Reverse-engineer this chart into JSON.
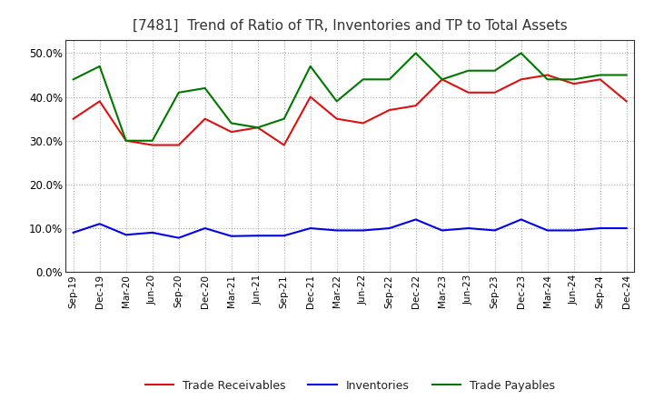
{
  "title": "[7481]  Trend of Ratio of TR, Inventories and TP to Total Assets",
  "x_labels": [
    "Sep-19",
    "Dec-19",
    "Mar-20",
    "Jun-20",
    "Sep-20",
    "Dec-20",
    "Mar-21",
    "Jun-21",
    "Sep-21",
    "Dec-21",
    "Mar-22",
    "Jun-22",
    "Sep-22",
    "Dec-22",
    "Mar-23",
    "Jun-23",
    "Sep-23",
    "Dec-23",
    "Mar-24",
    "Jun-24",
    "Sep-24",
    "Dec-24"
  ],
  "trade_receivables": [
    0.35,
    0.39,
    0.3,
    0.29,
    0.29,
    0.35,
    0.32,
    0.33,
    0.29,
    0.4,
    0.35,
    0.34,
    0.37,
    0.38,
    0.44,
    0.41,
    0.41,
    0.44,
    0.45,
    0.43,
    0.44,
    0.39
  ],
  "inventories": [
    0.09,
    0.11,
    0.085,
    0.09,
    0.078,
    0.1,
    0.082,
    0.083,
    0.083,
    0.1,
    0.095,
    0.095,
    0.1,
    0.12,
    0.095,
    0.1,
    0.095,
    0.12,
    0.095,
    0.095,
    0.1,
    0.1
  ],
  "trade_payables": [
    0.44,
    0.47,
    0.3,
    0.3,
    0.41,
    0.42,
    0.34,
    0.33,
    0.35,
    0.47,
    0.39,
    0.44,
    0.44,
    0.5,
    0.44,
    0.46,
    0.46,
    0.5,
    0.44,
    0.44,
    0.45,
    0.45
  ],
  "tr_color": "#dd1111",
  "inv_color": "#0000ee",
  "tp_color": "#007700",
  "ylim": [
    0.0,
    0.53
  ],
  "yticks": [
    0.0,
    0.1,
    0.2,
    0.3,
    0.4,
    0.5
  ],
  "background_color": "#ffffff",
  "grid_color": "#999999",
  "title_color": "#333333",
  "legend_tr": "Trade Receivables",
  "legend_inv": "Inventories",
  "legend_tp": "Trade Payables"
}
